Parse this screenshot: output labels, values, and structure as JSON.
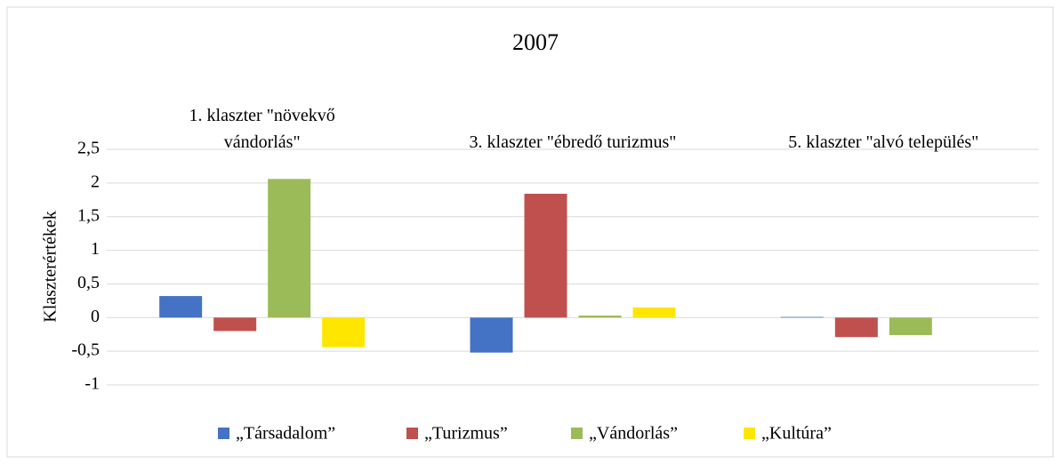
{
  "chart_data": {
    "type": "bar",
    "title": "2007",
    "y_label": "Klaszterértékek",
    "categories": [
      "1. klaszter \"növekvő vándorlás\"",
      "3. klaszter \"ébredő turizmus\"",
      "5. klaszter \"alvó település\""
    ],
    "series": [
      {
        "name": "„Társadalom”",
        "color": "#4472c4",
        "values": [
          0.32,
          -0.52,
          0.01
        ]
      },
      {
        "name": "„Turizmus”",
        "color": "#c0504d",
        "values": [
          -0.2,
          1.84,
          -0.29
        ]
      },
      {
        "name": "„Vándorlás”",
        "color": "#9bbb59",
        "values": [
          2.06,
          0.03,
          -0.26
        ]
      },
      {
        "name": "„Kultúra”",
        "color": "#ffe600",
        "values": [
          -0.44,
          0.15,
          0
        ]
      }
    ],
    "ylim": [
      -1,
      2.5
    ],
    "yticks": [
      {
        "value": -1,
        "label": "-1"
      },
      {
        "value": -0.5,
        "label": "-0,5"
      },
      0,
      {
        "value": 0.5,
        "label": "0,5"
      },
      1,
      {
        "value": 1.5,
        "label": "1,5"
      },
      2,
      {
        "value": 2.5,
        "label": "2,5"
      }
    ],
    "grid": true,
    "legend": "bottom"
  }
}
